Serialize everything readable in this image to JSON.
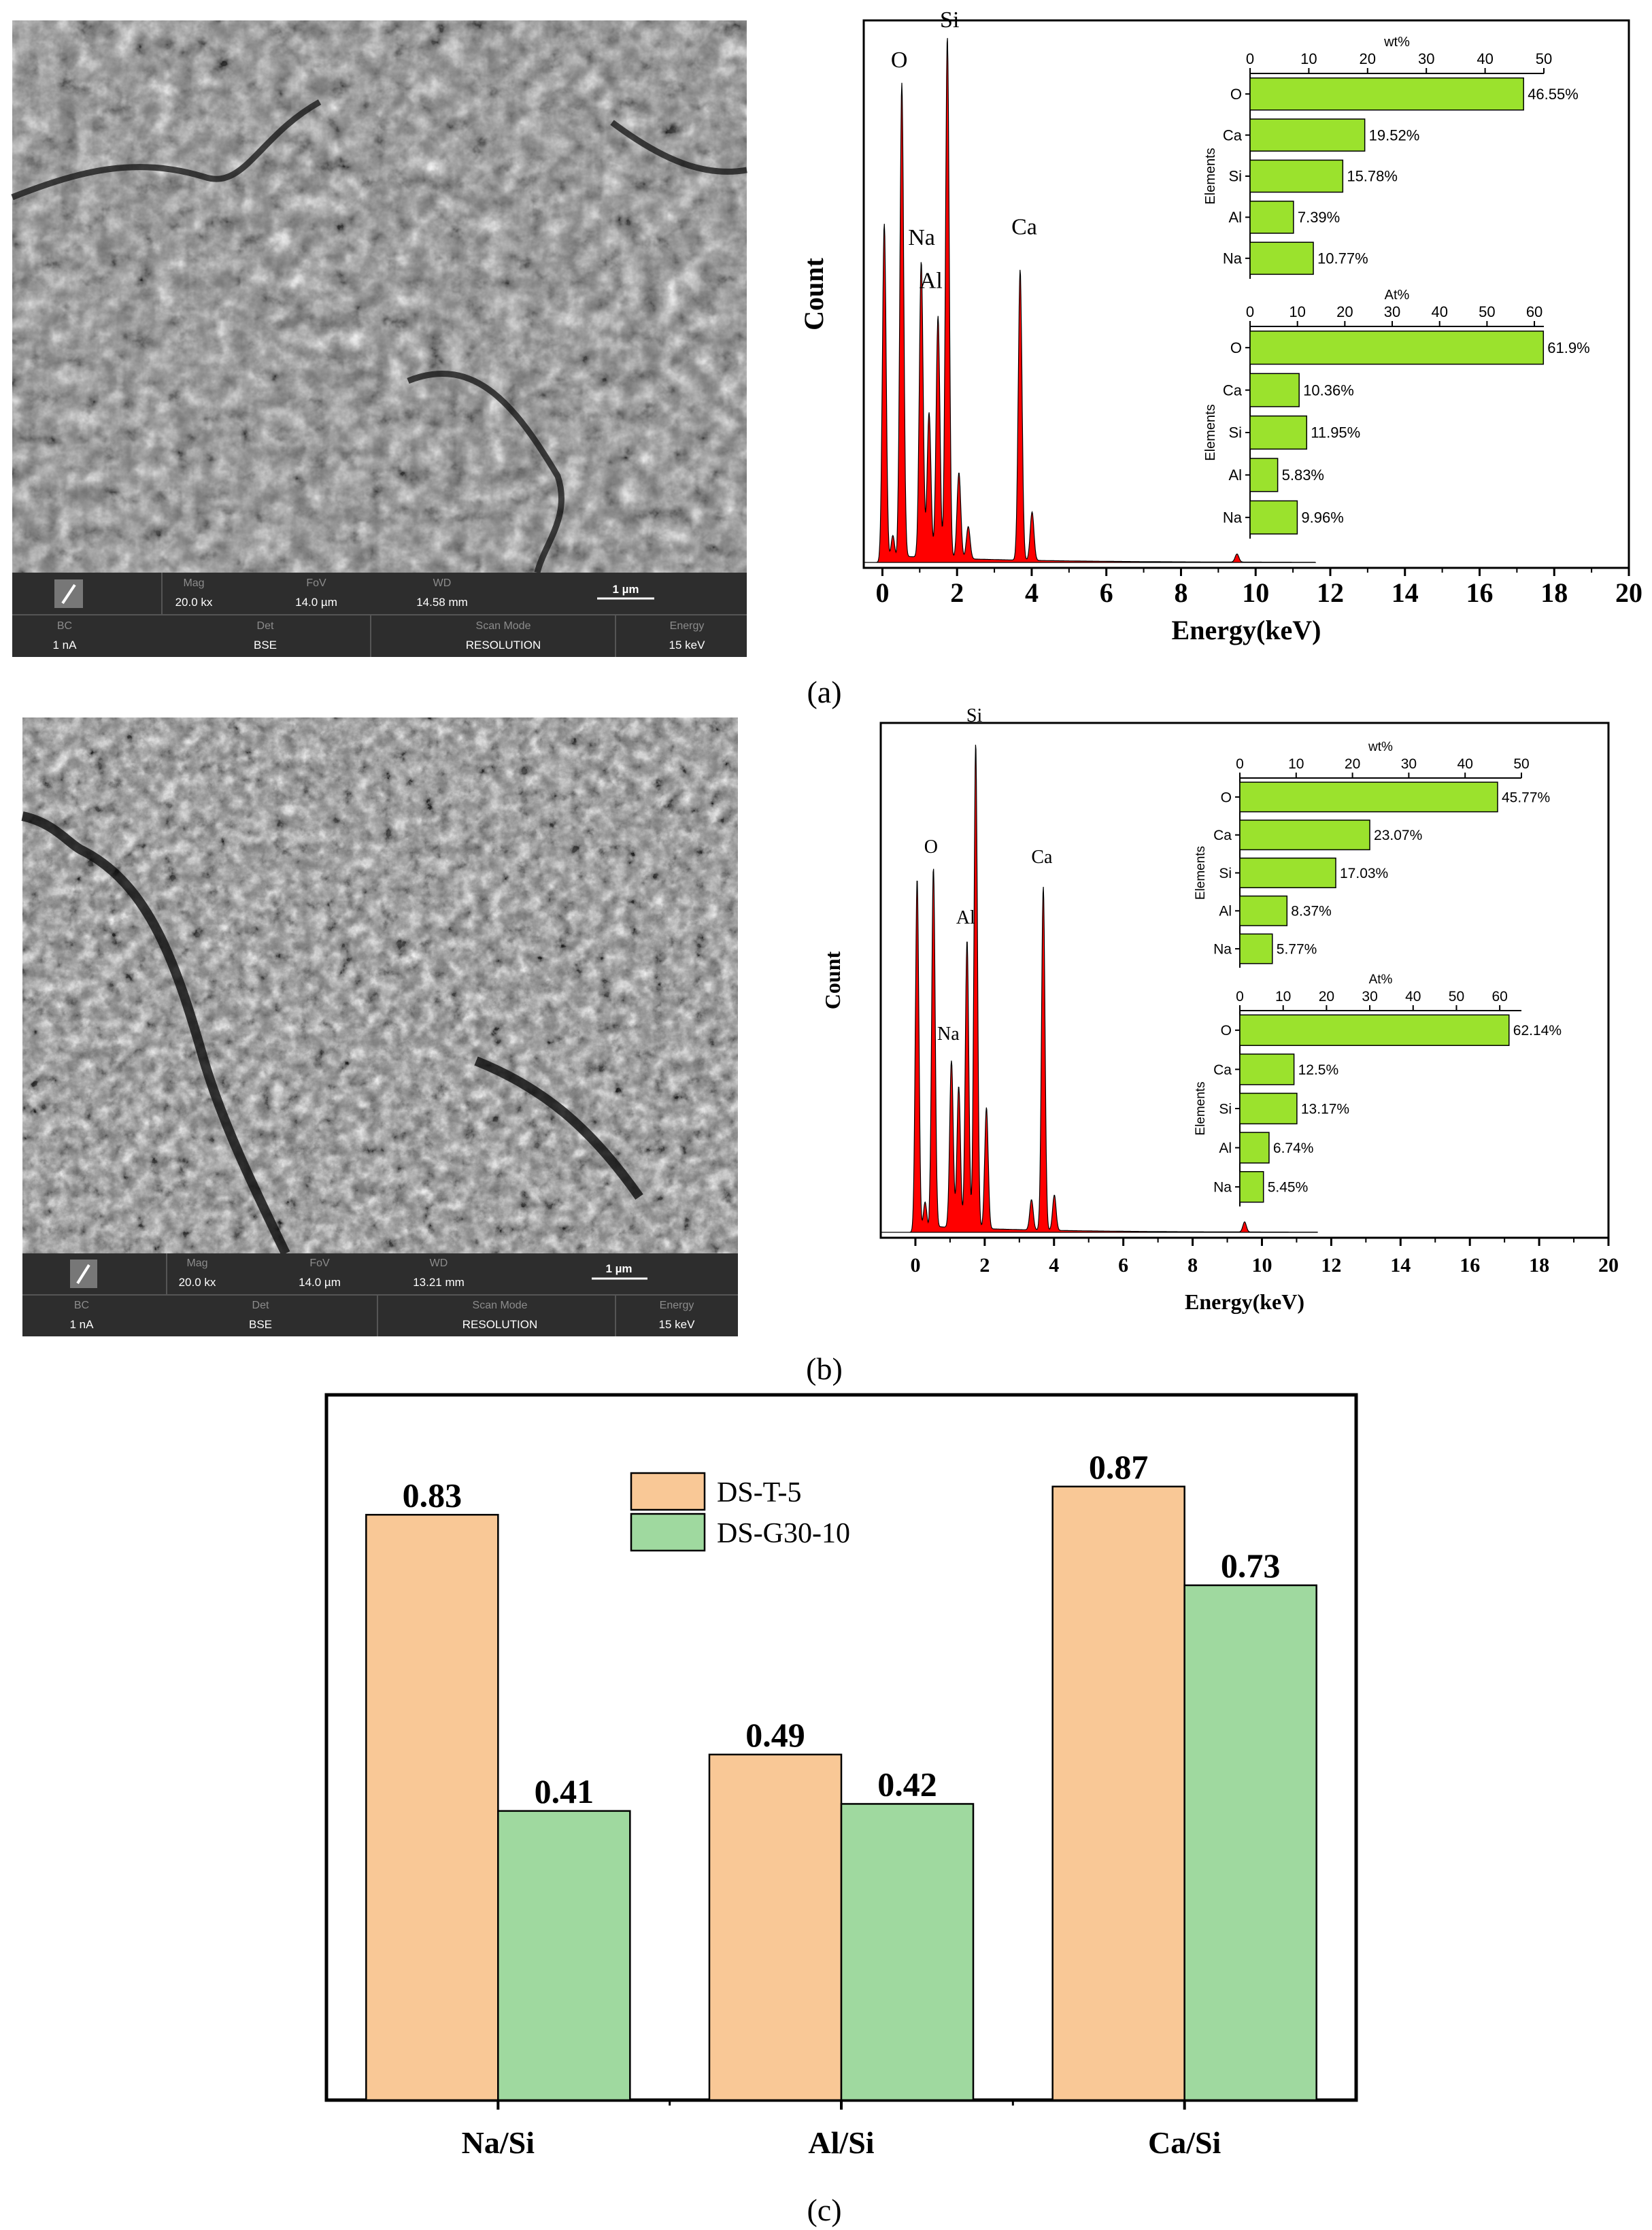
{
  "sem_images": [
    {
      "panel": "a",
      "info_bar": {
        "mag_label": "Mag",
        "mag_value": "20.0 kx",
        "fov_label": "FoV",
        "fov_value": "14.0 µm",
        "wd_label": "WD",
        "wd_value": "14.58 mm",
        "scale_label": "1 µm",
        "bc_label": "BC",
        "bc_value": "1 nA",
        "det_label": "Det",
        "det_value": "BSE",
        "scan_label": "Scan Mode",
        "scan_value": "RESOLUTION",
        "energy_label": "Energy",
        "energy_value": "15 keV"
      }
    },
    {
      "panel": "b",
      "info_bar": {
        "mag_label": "Mag",
        "mag_value": "20.0 kx",
        "fov_label": "FoV",
        "fov_value": "14.0 µm",
        "wd_label": "WD",
        "wd_value": "13.21 mm",
        "scale_label": "1 µm",
        "bc_label": "BC",
        "bc_value": "1 nA",
        "det_label": "Det",
        "det_value": "BSE",
        "scan_label": "Scan Mode",
        "scan_value": "RESOLUTION",
        "energy_label": "Energy",
        "energy_value": "15 keV"
      }
    }
  ],
  "panel_labels": [
    "(a)",
    "(b)",
    "(c)"
  ],
  "chart_data": [
    {
      "id": "eds-a",
      "type": "line",
      "title": "",
      "xlabel": "Energy(keV)",
      "ylabel": "Count",
      "xlim": [
        -0.5,
        20
      ],
      "xticks": [
        0,
        2,
        4,
        6,
        8,
        10,
        12,
        14,
        16,
        18,
        20
      ],
      "fill_color": "#ff0000",
      "peaks": [
        {
          "x": 0.05,
          "h": 0.63
        },
        {
          "x": 0.28,
          "h": 0.05
        },
        {
          "x": 0.52,
          "h": 0.88
        },
        {
          "x": 1.04,
          "h": 0.55
        },
        {
          "x": 1.25,
          "h": 0.27
        },
        {
          "x": 1.49,
          "h": 0.45
        },
        {
          "x": 1.74,
          "h": 0.97
        },
        {
          "x": 2.05,
          "h": 0.16
        },
        {
          "x": 2.3,
          "h": 0.06
        },
        {
          "x": 3.69,
          "h": 0.54
        },
        {
          "x": 4.01,
          "h": 0.09
        },
        {
          "x": 9.5,
          "h": 0.015
        }
      ],
      "peak_labels": [
        {
          "text": "O",
          "x": 0.45,
          "h": 0.91
        },
        {
          "text": "Si",
          "x": 1.8,
          "h": 0.985
        },
        {
          "text": "Na",
          "x": 1.05,
          "h": 0.58
        },
        {
          "text": "Al",
          "x": 1.3,
          "h": 0.5
        },
        {
          "text": "Ca",
          "x": 3.8,
          "h": 0.6
        }
      ],
      "insets": [
        {
          "type": "bar",
          "orientation": "horizontal",
          "title": "wt%",
          "ylabel": "Elements",
          "xlim": [
            0,
            50
          ],
          "xticks": [
            0,
            10,
            20,
            30,
            40,
            50
          ],
          "categories": [
            "O",
            "Ca",
            "Si",
            "Al",
            "Na"
          ],
          "values": [
            46.55,
            19.52,
            15.78,
            7.39,
            10.77
          ],
          "labels": [
            "46.55%",
            "19.52%",
            "15.78%",
            "7.39%",
            "10.77%"
          ],
          "color": "#9be22d"
        },
        {
          "type": "bar",
          "orientation": "horizontal",
          "title": "At%",
          "ylabel": "Elements",
          "xlim": [
            0,
            62
          ],
          "xticks": [
            0,
            10,
            20,
            30,
            40,
            50,
            60
          ],
          "categories": [
            "O",
            "Ca",
            "Si",
            "Al",
            "Na"
          ],
          "values": [
            61.9,
            10.36,
            11.95,
            5.83,
            9.96
          ],
          "labels": [
            "61.9%",
            "10.36%",
            "11.95%",
            "5.83%",
            "9.96%"
          ],
          "color": "#9be22d"
        }
      ]
    },
    {
      "id": "eds-b",
      "type": "line",
      "title": "",
      "xlabel": "Energy(keV)",
      "ylabel": "Count",
      "xlim": [
        -1,
        20
      ],
      "xticks": [
        0,
        2,
        4,
        6,
        8,
        10,
        12,
        14,
        16,
        18,
        20
      ],
      "fill_color": "#ff0000",
      "peaks": [
        {
          "x": 0.05,
          "h": 0.7
        },
        {
          "x": 0.28,
          "h": 0.06
        },
        {
          "x": 0.52,
          "h": 0.71
        },
        {
          "x": 1.04,
          "h": 0.33
        },
        {
          "x": 1.25,
          "h": 0.28
        },
        {
          "x": 1.49,
          "h": 0.57
        },
        {
          "x": 1.74,
          "h": 0.96
        },
        {
          "x": 2.05,
          "h": 0.24
        },
        {
          "x": 3.35,
          "h": 0.06
        },
        {
          "x": 3.69,
          "h": 0.68
        },
        {
          "x": 4.01,
          "h": 0.07
        },
        {
          "x": 9.5,
          "h": 0.02
        }
      ],
      "peak_labels": [
        {
          "text": "O",
          "x": 0.45,
          "h": 0.74
        },
        {
          "text": "Si",
          "x": 1.7,
          "h": 1.0
        },
        {
          "text": "Al",
          "x": 1.45,
          "h": 0.6
        },
        {
          "text": "Na",
          "x": 0.95,
          "h": 0.37
        },
        {
          "text": "Ca",
          "x": 3.65,
          "h": 0.72
        }
      ],
      "insets": [
        {
          "type": "bar",
          "orientation": "horizontal",
          "title": "wt%",
          "ylabel": "Elements",
          "xlim": [
            0,
            50
          ],
          "xticks": [
            0,
            10,
            20,
            30,
            40,
            50
          ],
          "categories": [
            "O",
            "Ca",
            "Si",
            "Al",
            "Na"
          ],
          "values": [
            45.77,
            23.07,
            17.03,
            8.37,
            5.77
          ],
          "labels": [
            "45.77%",
            "23.07%",
            "17.03%",
            "8.37%",
            "5.77%"
          ],
          "color": "#9be22d"
        },
        {
          "type": "bar",
          "orientation": "horizontal",
          "title": "At%",
          "ylabel": "Elements",
          "xlim": [
            0,
            65
          ],
          "xticks": [
            0,
            10,
            20,
            30,
            40,
            50,
            60
          ],
          "categories": [
            "O",
            "Ca",
            "Si",
            "Al",
            "Na"
          ],
          "values": [
            62.14,
            12.5,
            13.17,
            6.74,
            5.45
          ],
          "labels": [
            "62.14%",
            "12.5%",
            "13.17%",
            "6.74%",
            "5.45%"
          ],
          "color": "#9be22d"
        }
      ]
    },
    {
      "id": "ratio-c",
      "type": "bar",
      "title": "",
      "xlabel": "",
      "ylabel": "",
      "ylim": [
        0,
        1.0
      ],
      "categories": [
        "Na/Si",
        "Al/Si",
        "Ca/Si"
      ],
      "series": [
        {
          "name": "DS-T-5",
          "values": [
            0.83,
            0.49,
            0.87
          ],
          "labels": [
            "0.83",
            "0.49",
            "0.87"
          ],
          "color": "#f9c896"
        },
        {
          "name": "DS-G30-10",
          "values": [
            0.41,
            0.42,
            0.73
          ],
          "labels": [
            "0.41",
            "0.42",
            "0.73"
          ],
          "color": "#9fd99f"
        }
      ],
      "legend_position": "top-center"
    }
  ]
}
